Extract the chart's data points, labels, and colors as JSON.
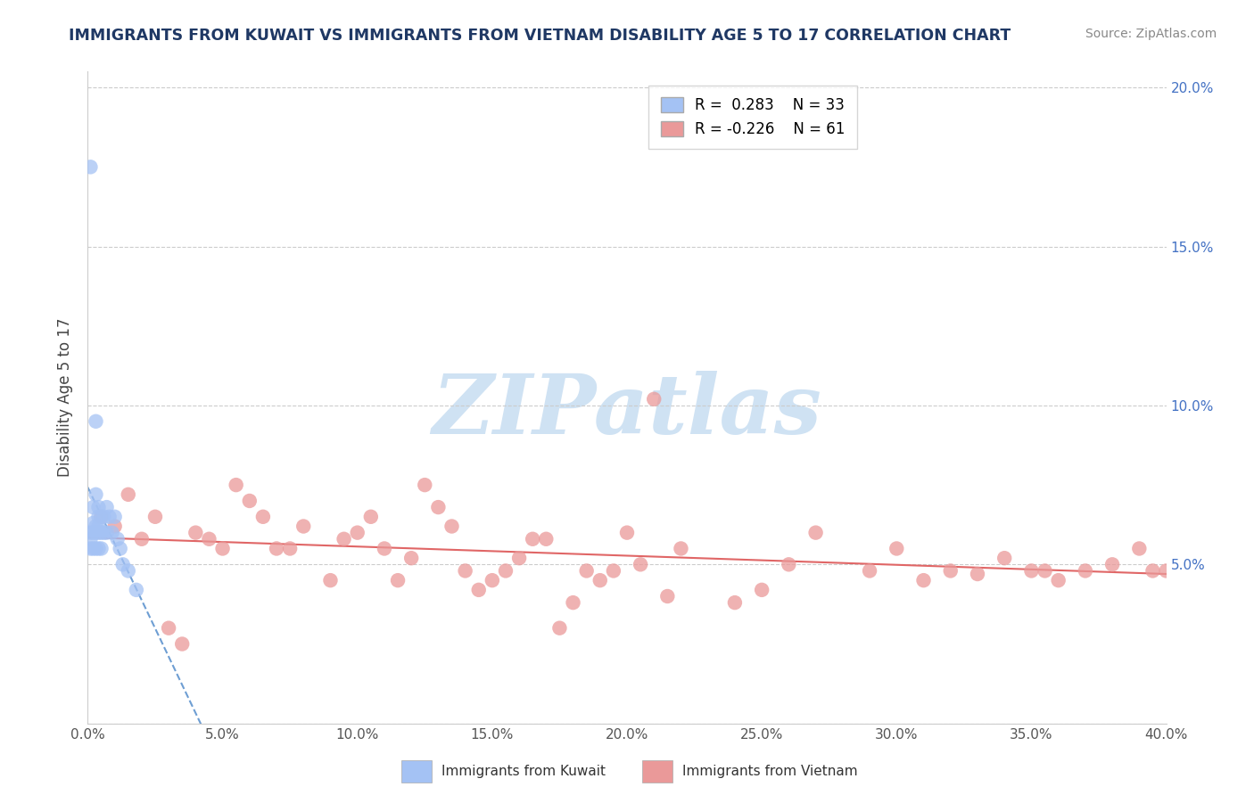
{
  "title": "IMMIGRANTS FROM KUWAIT VS IMMIGRANTS FROM VIETNAM DISABILITY AGE 5 TO 17 CORRELATION CHART",
  "source": "Source: ZipAtlas.com",
  "ylabel": "Disability Age 5 to 17",
  "xlabel": "",
  "xlim": [
    0.0,
    0.4
  ],
  "ylim": [
    0.0,
    0.205
  ],
  "xticks": [
    0.0,
    0.05,
    0.1,
    0.15,
    0.2,
    0.25,
    0.3,
    0.35,
    0.4
  ],
  "kuwait_R": 0.283,
  "kuwait_N": 33,
  "vietnam_R": -0.226,
  "vietnam_N": 61,
  "kuwait_color": "#a4c2f4",
  "vietnam_color": "#ea9999",
  "kuwait_line_color": "#4a86c8",
  "vietnam_line_color": "#e06666",
  "background_color": "#ffffff",
  "watermark": "ZIPatlas",
  "watermark_color": "#cfe2f3",
  "kuwait_x": [
    0.001,
    0.001,
    0.001,
    0.001,
    0.002,
    0.002,
    0.002,
    0.002,
    0.003,
    0.003,
    0.003,
    0.003,
    0.003,
    0.004,
    0.004,
    0.004,
    0.004,
    0.004,
    0.005,
    0.005,
    0.005,
    0.006,
    0.006,
    0.007,
    0.007,
    0.008,
    0.009,
    0.01,
    0.011,
    0.012,
    0.013,
    0.015,
    0.018
  ],
  "kuwait_y": [
    0.175,
    0.06,
    0.058,
    0.055,
    0.068,
    0.063,
    0.06,
    0.055,
    0.095,
    0.072,
    0.062,
    0.06,
    0.055,
    0.068,
    0.065,
    0.062,
    0.06,
    0.055,
    0.065,
    0.06,
    0.055,
    0.065,
    0.06,
    0.068,
    0.06,
    0.065,
    0.06,
    0.065,
    0.058,
    0.055,
    0.05,
    0.048,
    0.042
  ],
  "vietnam_x": [
    0.005,
    0.01,
    0.015,
    0.02,
    0.025,
    0.03,
    0.035,
    0.04,
    0.045,
    0.05,
    0.055,
    0.06,
    0.065,
    0.07,
    0.075,
    0.08,
    0.09,
    0.095,
    0.1,
    0.105,
    0.11,
    0.115,
    0.12,
    0.125,
    0.13,
    0.135,
    0.14,
    0.145,
    0.15,
    0.155,
    0.16,
    0.165,
    0.17,
    0.175,
    0.18,
    0.185,
    0.19,
    0.195,
    0.2,
    0.205,
    0.21,
    0.215,
    0.22,
    0.24,
    0.25,
    0.26,
    0.27,
    0.29,
    0.3,
    0.31,
    0.32,
    0.33,
    0.34,
    0.35,
    0.355,
    0.36,
    0.37,
    0.38,
    0.39,
    0.395,
    0.4
  ],
  "vietnam_y": [
    0.065,
    0.062,
    0.072,
    0.058,
    0.065,
    0.03,
    0.025,
    0.06,
    0.058,
    0.055,
    0.075,
    0.07,
    0.065,
    0.055,
    0.055,
    0.062,
    0.045,
    0.058,
    0.06,
    0.065,
    0.055,
    0.045,
    0.052,
    0.075,
    0.068,
    0.062,
    0.048,
    0.042,
    0.045,
    0.048,
    0.052,
    0.058,
    0.058,
    0.03,
    0.038,
    0.048,
    0.045,
    0.048,
    0.06,
    0.05,
    0.102,
    0.04,
    0.055,
    0.038,
    0.042,
    0.05,
    0.06,
    0.048,
    0.055,
    0.045,
    0.048,
    0.047,
    0.052,
    0.048,
    0.048,
    0.045,
    0.048,
    0.05,
    0.055,
    0.048,
    0.048
  ]
}
